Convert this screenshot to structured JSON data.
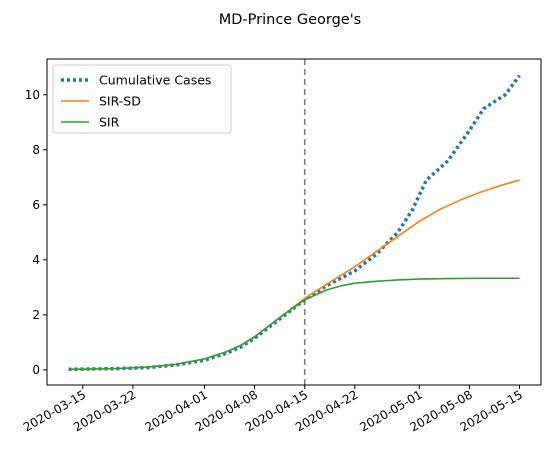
{
  "chart_data": {
    "type": "line",
    "title": "MD-Prince George's",
    "xlabel": "",
    "ylabel": "",
    "x_axis_type": "date",
    "xlim": [
      "2020-03-10",
      "2020-05-18"
    ],
    "ylim": [
      -0.55,
      11.3
    ],
    "x_ticks": [
      "2020-03-15",
      "2020-03-22",
      "2020-04-01",
      "2020-04-08",
      "2020-04-15",
      "2020-04-22",
      "2020-05-01",
      "2020-05-08",
      "2020-05-15"
    ],
    "y_ticks": [
      0,
      2,
      4,
      6,
      8,
      10
    ],
    "grid": false,
    "legend_position": "upper-left",
    "vertical_line": {
      "x": "2020-04-15",
      "style": "dashed",
      "color": "#7f7f7f"
    },
    "series": [
      {
        "name": "Cumulative Cases",
        "style": "dotted",
        "color": "#1f77b4",
        "points": [
          [
            "2020-03-13",
            0.02
          ],
          [
            "2020-03-16",
            0.03
          ],
          [
            "2020-03-20",
            0.05
          ],
          [
            "2020-03-24",
            0.08
          ],
          [
            "2020-03-28",
            0.18
          ],
          [
            "2020-04-01",
            0.35
          ],
          [
            "2020-04-04",
            0.6
          ],
          [
            "2020-04-06",
            0.82
          ],
          [
            "2020-04-08",
            1.15
          ],
          [
            "2020-04-10",
            1.55
          ],
          [
            "2020-04-12",
            1.95
          ],
          [
            "2020-04-15",
            2.55
          ],
          [
            "2020-04-18",
            3.05
          ],
          [
            "2020-04-22",
            3.6
          ],
          [
            "2020-04-25",
            4.2
          ],
          [
            "2020-04-28",
            5.0
          ],
          [
            "2020-04-30",
            5.8
          ],
          [
            "2020-05-02",
            6.9
          ],
          [
            "2020-05-05",
            7.6
          ],
          [
            "2020-05-08",
            8.7
          ],
          [
            "2020-05-10",
            9.5
          ],
          [
            "2020-05-13",
            10.0
          ],
          [
            "2020-05-15",
            10.7
          ]
        ]
      },
      {
        "name": "SIR-SD",
        "style": "solid",
        "color": "#ff7f0e",
        "points": [
          [
            "2020-03-13",
            0.02
          ],
          [
            "2020-03-16",
            0.03
          ],
          [
            "2020-03-20",
            0.05
          ],
          [
            "2020-03-24",
            0.1
          ],
          [
            "2020-03-28",
            0.2
          ],
          [
            "2020-04-01",
            0.4
          ],
          [
            "2020-04-04",
            0.65
          ],
          [
            "2020-04-06",
            0.88
          ],
          [
            "2020-04-08",
            1.2
          ],
          [
            "2020-04-10",
            1.6
          ],
          [
            "2020-04-12",
            2.0
          ],
          [
            "2020-04-15",
            2.6
          ],
          [
            "2020-04-18",
            3.1
          ],
          [
            "2020-04-22",
            3.75
          ],
          [
            "2020-04-25",
            4.3
          ],
          [
            "2020-04-28",
            4.85
          ],
          [
            "2020-05-01",
            5.4
          ],
          [
            "2020-05-04",
            5.85
          ],
          [
            "2020-05-07",
            6.2
          ],
          [
            "2020-05-10",
            6.5
          ],
          [
            "2020-05-13",
            6.75
          ],
          [
            "2020-05-15",
            6.9
          ]
        ]
      },
      {
        "name": "SIR",
        "style": "solid",
        "color": "#2ca02c",
        "points": [
          [
            "2020-03-13",
            0.02
          ],
          [
            "2020-03-16",
            0.03
          ],
          [
            "2020-03-20",
            0.05
          ],
          [
            "2020-03-24",
            0.1
          ],
          [
            "2020-03-28",
            0.2
          ],
          [
            "2020-04-01",
            0.4
          ],
          [
            "2020-04-04",
            0.65
          ],
          [
            "2020-04-06",
            0.88
          ],
          [
            "2020-04-08",
            1.2
          ],
          [
            "2020-04-10",
            1.6
          ],
          [
            "2020-04-12",
            2.0
          ],
          [
            "2020-04-15",
            2.55
          ],
          [
            "2020-04-18",
            2.9
          ],
          [
            "2020-04-20",
            3.05
          ],
          [
            "2020-04-22",
            3.15
          ],
          [
            "2020-04-25",
            3.22
          ],
          [
            "2020-04-28",
            3.27
          ],
          [
            "2020-05-01",
            3.3
          ],
          [
            "2020-05-05",
            3.32
          ],
          [
            "2020-05-10",
            3.33
          ],
          [
            "2020-05-15",
            3.33
          ]
        ]
      }
    ]
  }
}
